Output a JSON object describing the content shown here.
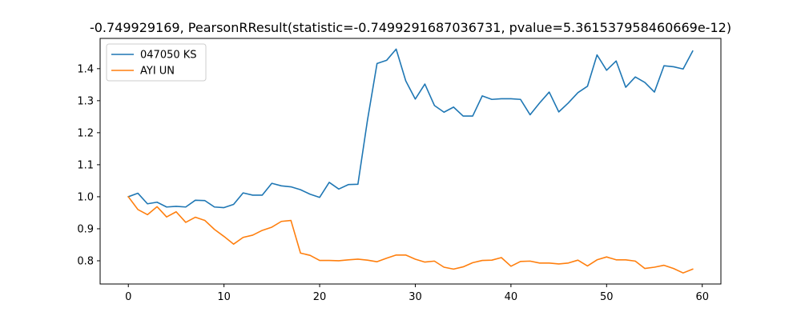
{
  "chart_data": {
    "type": "line",
    "title": "-0.749929169, PearsonRResult(statistic=-0.7499291687036731, pvalue=5.361537958460669e-12)",
    "xlabel": "",
    "ylabel": "",
    "xlim": [
      -2.95,
      61.95
    ],
    "ylim": [
      0.7275,
      1.4945
    ],
    "xticks": [
      0,
      10,
      20,
      30,
      40,
      50,
      60
    ],
    "yticks": [
      0.8,
      0.9,
      1.0,
      1.1,
      1.2,
      1.3,
      1.4
    ],
    "ytick_labels": [
      "0.8",
      "0.9",
      "1.0",
      "1.1",
      "1.2",
      "1.3",
      "1.4"
    ],
    "grid": false,
    "legend_position": "upper-left",
    "series": [
      {
        "name": "047050 KS",
        "color": "#1f77b4",
        "values": [
          1.0,
          1.011,
          0.978,
          0.983,
          0.968,
          0.97,
          0.968,
          0.989,
          0.988,
          0.968,
          0.966,
          0.976,
          1.012,
          1.005,
          1.005,
          1.042,
          1.034,
          1.031,
          1.022,
          1.008,
          0.998,
          1.045,
          1.024,
          1.038,
          1.039,
          1.239,
          1.416,
          1.426,
          1.461,
          1.362,
          1.305,
          1.352,
          1.285,
          1.264,
          1.28,
          1.252,
          1.252,
          1.315,
          1.304,
          1.306,
          1.306,
          1.304,
          1.256,
          1.293,
          1.327,
          1.265,
          1.293,
          1.325,
          1.345,
          1.443,
          1.395,
          1.424,
          1.342,
          1.374,
          1.357,
          1.327,
          1.409,
          1.406,
          1.399,
          1.455
        ]
      },
      {
        "name": "AYI UN",
        "color": "#ff7f0e",
        "values": [
          1.0,
          0.96,
          0.944,
          0.969,
          0.937,
          0.953,
          0.92,
          0.936,
          0.926,
          0.898,
          0.876,
          0.852,
          0.873,
          0.88,
          0.895,
          0.905,
          0.923,
          0.926,
          0.824,
          0.817,
          0.801,
          0.801,
          0.8,
          0.803,
          0.805,
          0.802,
          0.797,
          0.808,
          0.818,
          0.818,
          0.805,
          0.796,
          0.799,
          0.78,
          0.774,
          0.781,
          0.794,
          0.801,
          0.802,
          0.81,
          0.783,
          0.798,
          0.799,
          0.793,
          0.793,
          0.79,
          0.793,
          0.802,
          0.784,
          0.803,
          0.812,
          0.803,
          0.803,
          0.799,
          0.776,
          0.78,
          0.786,
          0.776,
          0.762,
          0.774
        ]
      }
    ]
  }
}
